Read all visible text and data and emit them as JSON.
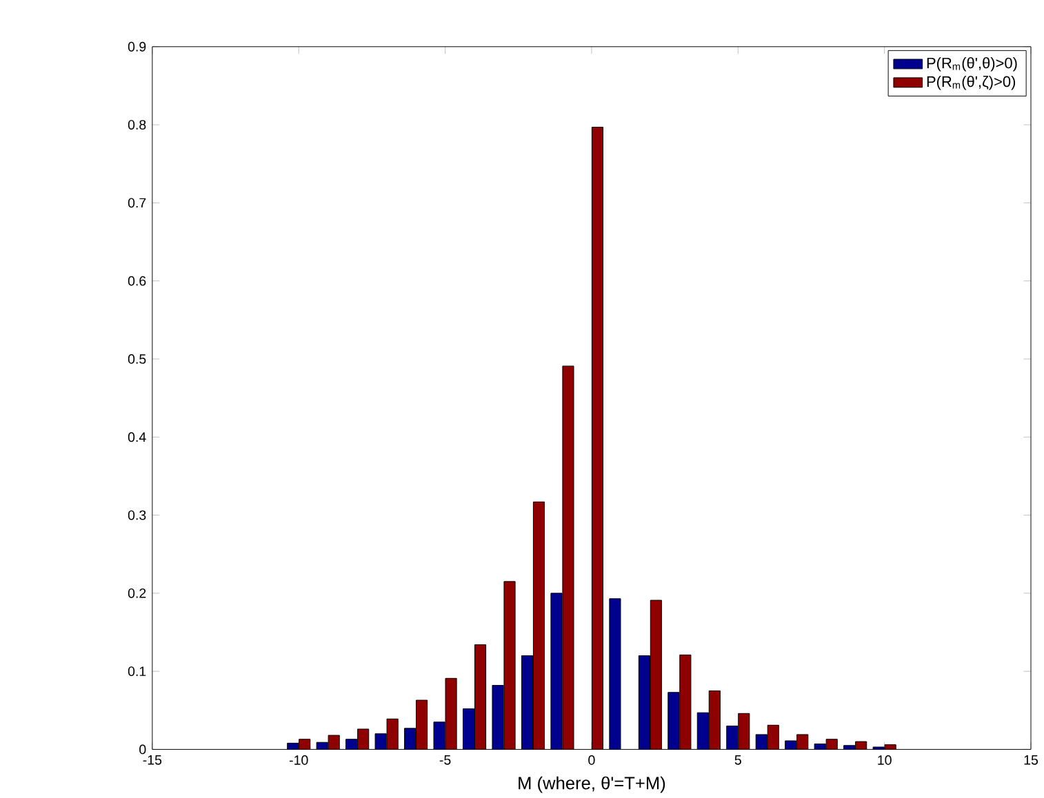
{
  "chart_data": {
    "type": "bar",
    "xlabel": "M (where, θ'=T+M)",
    "x": [
      -10,
      -9,
      -8,
      -7,
      -6,
      -5,
      -4,
      -3,
      -2,
      -1,
      0,
      1,
      2,
      3,
      4,
      5,
      6,
      7,
      8,
      9,
      10
    ],
    "series": [
      {
        "name": "P(R$_{m}$(θ',θ)>0)",
        "color": "#00008f",
        "values": [
          0.008,
          0.009,
          0.013,
          0.02,
          0.027,
          0.035,
          0.052,
          0.082,
          0.12,
          0.2,
          null,
          0.193,
          0.12,
          0.073,
          0.047,
          0.03,
          0.019,
          0.011,
          0.007,
          0.005,
          0.003
        ]
      },
      {
        "name": "P(R$_{m}$(θ',ζ)>0)",
        "color": "#8f0000",
        "values": [
          0.013,
          0.018,
          0.026,
          0.039,
          0.063,
          0.091,
          0.134,
          0.215,
          0.317,
          0.491,
          0.797,
          null,
          0.191,
          0.121,
          0.075,
          0.046,
          0.031,
          0.019,
          0.013,
          0.01,
          0.006
        ]
      }
    ],
    "xlim": [
      -15,
      15
    ],
    "xticks": [
      -15,
      -10,
      -5,
      0,
      5,
      10,
      15
    ],
    "ylim": [
      0,
      0.9
    ],
    "yticks": [
      0,
      0.1,
      0.2,
      0.3,
      0.4,
      0.5,
      0.6,
      0.7,
      0.8,
      0.9
    ],
    "legend": "top right"
  }
}
